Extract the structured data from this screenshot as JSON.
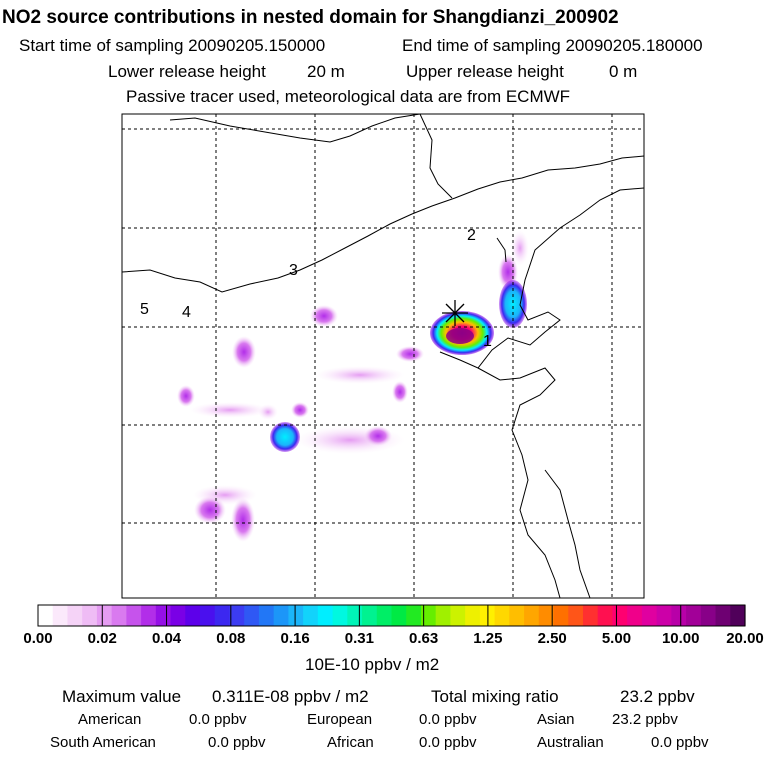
{
  "header": {
    "title": "NO2 source contributions in nested domain for Shangdianzi_200902",
    "start_label": "Start time of sampling 20090205.150000",
    "end_label": "End time of sampling 20090205.180000",
    "lower_label": "Lower release height",
    "lower_value": "20 m",
    "upper_label": "Upper release height",
    "upper_value": "0 m",
    "note": "Passive tracer used, meteorological data are from ECMWF"
  },
  "map": {
    "region_labels": [
      "1",
      "2",
      "3",
      "4",
      "5"
    ],
    "station_marker": "receptor-star"
  },
  "chart_data": {
    "type": "heatmap",
    "title": "NO2 source contributions in nested domain for Shangdianzi_200902",
    "colorbar": {
      "ticks": [
        "0.00",
        "0.02",
        "0.04",
        "0.08",
        "0.16",
        "0.31",
        "0.63",
        "1.25",
        "2.50",
        "5.00",
        "10.00",
        "20.00"
      ],
      "unit": "10E-10 ppbv / m2",
      "colors": [
        "#ffffff",
        "#fbe9fb",
        "#f5d3f7",
        "#efbcf5",
        "#e59cf2",
        "#d97aef",
        "#c653ec",
        "#b22ee9",
        "#9510e6",
        "#7a00e6",
        "#5d00ea",
        "#4a10ee",
        "#3c28f0",
        "#3c3cf2",
        "#2f58f4",
        "#2277f6",
        "#1c96f8",
        "#1bb5fa",
        "#12d3fb",
        "#00eeff",
        "#00f8e0",
        "#00f5b8",
        "#00f290",
        "#00ee66",
        "#00ea44",
        "#22ea22",
        "#66ee00",
        "#a0f000",
        "#ccf200",
        "#eef000",
        "#fff000",
        "#ffd800",
        "#ffbe00",
        "#ffa600",
        "#ff8c00",
        "#ff7000",
        "#ff5518",
        "#ff3030",
        "#ff1050",
        "#ff0070",
        "#f0008a",
        "#e000a0",
        "#cc00a8",
        "#b800a8",
        "#a20098",
        "#880088",
        "#6e0072",
        "#50005a"
      ]
    },
    "legend_summary": {
      "max_label": "Maximum value",
      "max_value": "0.311E-08 ppbv / m2",
      "total_label": "Total mixing ratio",
      "total_value": "23.2 ppbv",
      "regions": [
        {
          "name": "American",
          "value": "0.0 ppbv"
        },
        {
          "name": "European",
          "value": "0.0 ppbv"
        },
        {
          "name": "Asian",
          "value": "23.2 ppbv"
        },
        {
          "name": "South American",
          "value": "0.0 ppbv"
        },
        {
          "name": "African",
          "value": "0.0 ppbv"
        },
        {
          "name": "Australian",
          "value": "0.0 ppbv"
        }
      ]
    }
  }
}
